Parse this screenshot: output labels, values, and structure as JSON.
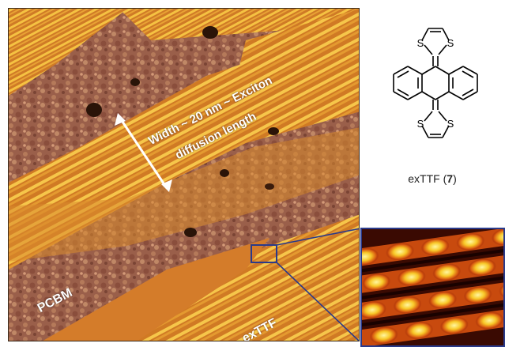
{
  "figure": {
    "annotations": {
      "width_line1": "Width ~ 20 nm ~ Exciton",
      "width_line2": "diffusion length",
      "pcbm": "PCBM",
      "exttf_region": "exTTF"
    },
    "compound": {
      "name": "exTTF",
      "number": "7"
    },
    "molecule_atoms": {
      "s1": "S",
      "s2": "S",
      "s3": "S",
      "s4": "S"
    },
    "colors": {
      "stripe_yellow": "#f0b428",
      "substrate_orange": "#d07a24",
      "pcbm_brown": "#9a5f4a",
      "zoom_box": "#2a3a8a"
    }
  }
}
